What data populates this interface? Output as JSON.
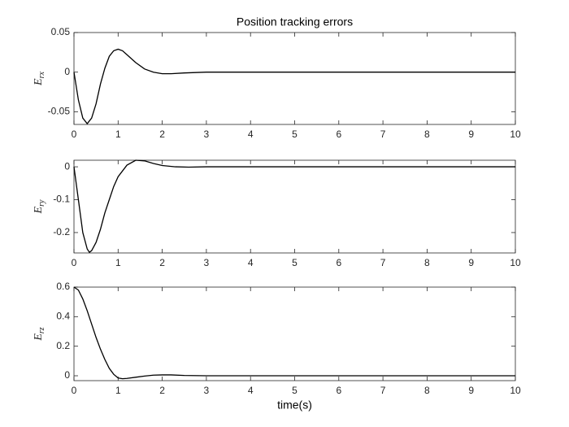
{
  "chart_data": [
    {
      "type": "line",
      "title": "Position tracking errors",
      "ylabel": {
        "base": "E",
        "sub": "rx"
      },
      "x": [
        0,
        0.1,
        0.2,
        0.3,
        0.4,
        0.5,
        0.6,
        0.7,
        0.8,
        0.9,
        1.0,
        1.1,
        1.2,
        1.4,
        1.6,
        1.8,
        2.0,
        2.2,
        2.5,
        3,
        10
      ],
      "series": [
        {
          "color": "#000000",
          "values": [
            0,
            -0.035,
            -0.058,
            -0.065,
            -0.058,
            -0.04,
            -0.015,
            0.005,
            0.02,
            0.027,
            0.029,
            0.027,
            0.022,
            0.012,
            0.004,
            0,
            -0.002,
            -0.002,
            -0.001,
            0,
            0
          ]
        }
      ],
      "xlim": [
        0,
        10
      ],
      "xticks": [
        0,
        1,
        2,
        3,
        4,
        5,
        6,
        7,
        8,
        9,
        10
      ],
      "ylim": [
        -0.066,
        0.05
      ],
      "yticks": [
        -0.05,
        0,
        0.05
      ],
      "grid": false
    },
    {
      "type": "line",
      "ylabel": {
        "base": "E",
        "sub": "ry"
      },
      "x": [
        0,
        0.1,
        0.2,
        0.3,
        0.35,
        0.4,
        0.5,
        0.6,
        0.7,
        0.8,
        0.9,
        1.0,
        1.2,
        1.4,
        1.6,
        1.8,
        2.0,
        2.3,
        2.6,
        3,
        10
      ],
      "series": [
        {
          "color": "#000000",
          "values": [
            0,
            -0.1,
            -0.2,
            -0.25,
            -0.26,
            -0.255,
            -0.23,
            -0.19,
            -0.14,
            -0.1,
            -0.06,
            -0.03,
            0.005,
            0.02,
            0.018,
            0.01,
            0.004,
            0,
            -0.001,
            0,
            0
          ]
        }
      ],
      "xlim": [
        0,
        10
      ],
      "xticks": [
        0,
        1,
        2,
        3,
        4,
        5,
        6,
        7,
        8,
        9,
        10
      ],
      "ylim": [
        -0.262,
        0.02
      ],
      "yticks": [
        -0.2,
        -0.1,
        0
      ],
      "grid": false
    },
    {
      "type": "line",
      "ylabel": {
        "base": "E",
        "sub": "rz"
      },
      "xlabel": "time(s)",
      "x": [
        0,
        0.1,
        0.2,
        0.3,
        0.4,
        0.5,
        0.6,
        0.7,
        0.8,
        0.9,
        1.0,
        1.1,
        1.2,
        1.4,
        1.6,
        1.8,
        2.0,
        2.2,
        2.5,
        3,
        10
      ],
      "series": [
        {
          "color": "#000000",
          "values": [
            0.6,
            0.58,
            0.52,
            0.44,
            0.35,
            0.26,
            0.18,
            0.11,
            0.05,
            0.01,
            -0.015,
            -0.02,
            -0.018,
            -0.01,
            -0.002,
            0.004,
            0.006,
            0.006,
            0.002,
            0,
            0
          ]
        }
      ],
      "xlim": [
        0,
        10
      ],
      "xticks": [
        0,
        1,
        2,
        3,
        4,
        5,
        6,
        7,
        8,
        9,
        10
      ],
      "ylim": [
        -0.033,
        0.6
      ],
      "yticks": [
        0,
        0.2,
        0.4,
        0.6
      ],
      "grid": false
    }
  ]
}
